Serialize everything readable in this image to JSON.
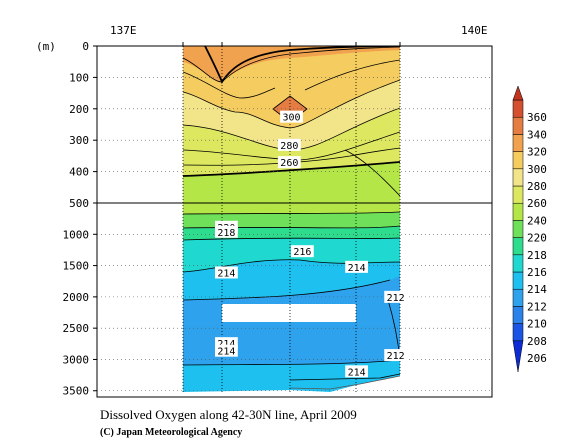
{
  "chart_data": {
    "type": "heatmap",
    "title": "Dissolved Oxygen along 42-30N line, April 2009",
    "credit": "(C) Japan Meteorological Agency",
    "ylabel": "(m)",
    "x_top_ticks": [
      "137E",
      "140E"
    ],
    "y_ticks_upper": [
      0,
      100,
      200,
      300,
      400,
      500
    ],
    "y_ticks_lower": [
      1000,
      1500,
      2000,
      2500,
      3000,
      3500
    ],
    "y_split_depth": 500,
    "colorbar_levels": [
      206,
      208,
      210,
      212,
      214,
      216,
      218,
      220,
      240,
      260,
      280,
      300,
      320,
      340,
      360
    ],
    "colorbar_colors": [
      "#0c2bd4",
      "#1b55e6",
      "#2a82ea",
      "#2fa2ee",
      "#1dc0ee",
      "#1fd8cf",
      "#2edc8e",
      "#6ee05a",
      "#b3e646",
      "#dde860",
      "#f2e489",
      "#f5cc5f",
      "#f0a24e",
      "#e57d42",
      "#d4502f",
      "#c23420"
    ],
    "contour_labels": [
      {
        "text": "300",
        "depth": 225,
        "pos": 0.5
      },
      {
        "text": "280",
        "depth": 315,
        "pos": 0.49
      },
      {
        "text": "260",
        "depth": 370,
        "pos": 0.49
      },
      {
        "text": "220",
        "depth": 880,
        "pos": 0.2
      },
      {
        "text": "218",
        "depth": 960,
        "pos": 0.2
      },
      {
        "text": "216",
        "depth": 1270,
        "pos": 0.55
      },
      {
        "text": "214",
        "depth": 1610,
        "pos": 0.2
      },
      {
        "text": "214",
        "depth": 1520,
        "pos": 0.8
      },
      {
        "text": "212",
        "depth": 2000,
        "pos": 0.98
      },
      {
        "text": "214",
        "depth": 2740,
        "pos": 0.2
      },
      {
        "text": "214",
        "depth": 2860,
        "pos": 0.2
      },
      {
        "text": "212",
        "depth": 2930,
        "pos": 0.98
      },
      {
        "text": "214",
        "depth": 3190,
        "pos": 0.8
      }
    ]
  }
}
